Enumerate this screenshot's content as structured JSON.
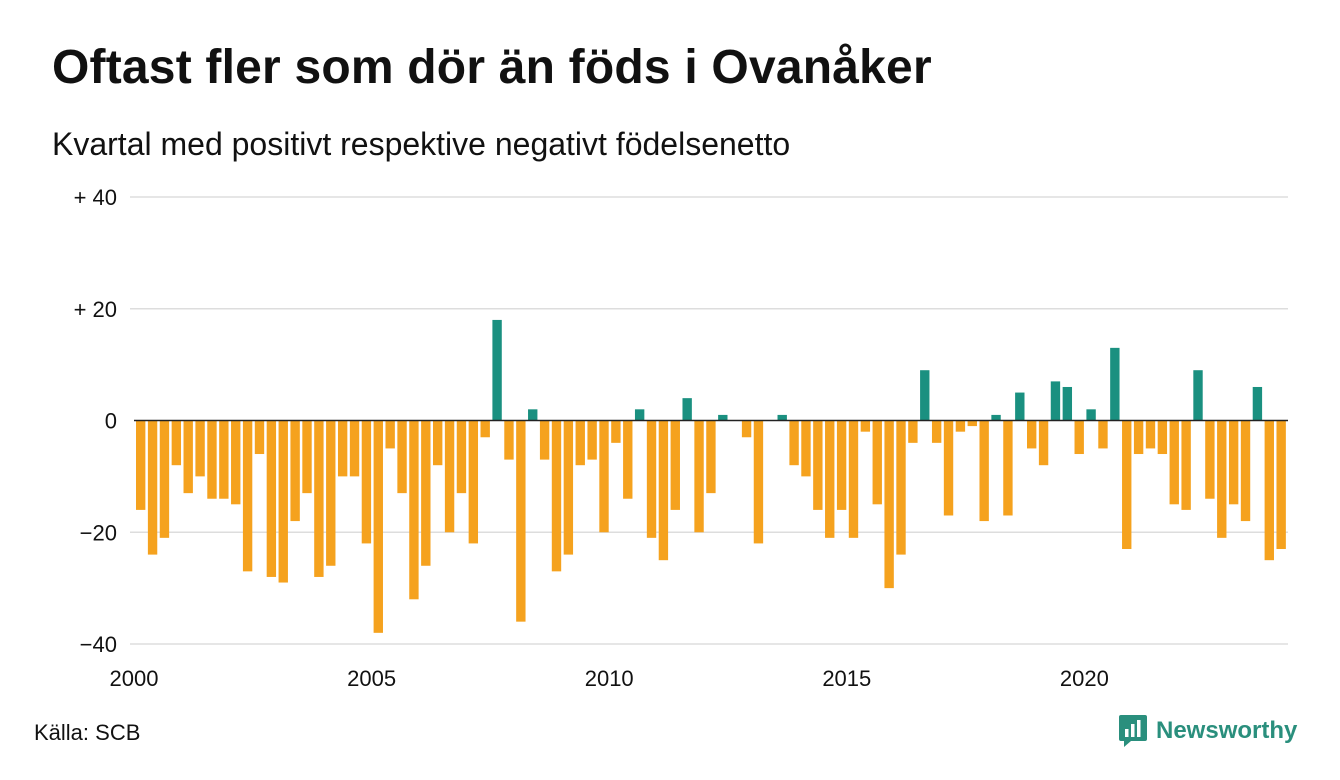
{
  "title": "Oftast fler som dör än föds i Ovanåker",
  "subtitle": "Kvartal med positivt respektive negativt födelsenetto",
  "source": "Källa: SCB",
  "brand": {
    "name": "Newsworthy",
    "logo_icon": "newsworthy-logo-icon",
    "color": "#2a8f7d"
  },
  "colors": {
    "positive": "#1a9080",
    "negative": "#f5a21e",
    "grid": "#dddddd",
    "zero_line": "#222222"
  },
  "chart_data": {
    "type": "bar",
    "title": "Oftast fler som dör än föds i Ovanåker",
    "subtitle": "Kvartal med positivt respektive negativt födelsenetto",
    "xlabel": "",
    "ylabel": "",
    "x_start_year": 2000,
    "periods_per_year": 4,
    "x_tick_labels": [
      "2000",
      "2005",
      "2010",
      "2015",
      "2020"
    ],
    "x_tick_years": [
      2000,
      2005,
      2010,
      2015,
      2020
    ],
    "y_ticks": [
      40,
      20,
      0,
      -20,
      -40
    ],
    "y_tick_labels": [
      "+ 40",
      "+ 20",
      "0",
      "−20",
      "−40"
    ],
    "ylim": [
      -40,
      40
    ],
    "grid": true,
    "legend": "none",
    "values": [
      -16,
      -24,
      -21,
      -8,
      -13,
      -10,
      -14,
      -14,
      -15,
      -27,
      -6,
      -28,
      -29,
      -18,
      -13,
      -28,
      -26,
      -10,
      -10,
      -22,
      -38,
      -5,
      -13,
      -32,
      -26,
      -8,
      -20,
      -13,
      -22,
      -3,
      18,
      -7,
      -36,
      2,
      -7,
      -27,
      -24,
      -8,
      -7,
      -20,
      -4,
      -14,
      2,
      -21,
      -25,
      -16,
      4,
      -20,
      -13,
      1,
      0,
      -3,
      -22,
      0,
      1,
      -8,
      -10,
      -16,
      -21,
      -16,
      -21,
      -2,
      -15,
      -30,
      -24,
      -4,
      9,
      -4,
      -17,
      -2,
      -1,
      -18,
      1,
      -17,
      5,
      -5,
      -8,
      7,
      6,
      -6,
      2,
      -5,
      13,
      -23,
      -6,
      -5,
      -6,
      -15,
      -16,
      9,
      -14,
      -21,
      -15,
      -18,
      6,
      -25,
      -23
    ]
  }
}
